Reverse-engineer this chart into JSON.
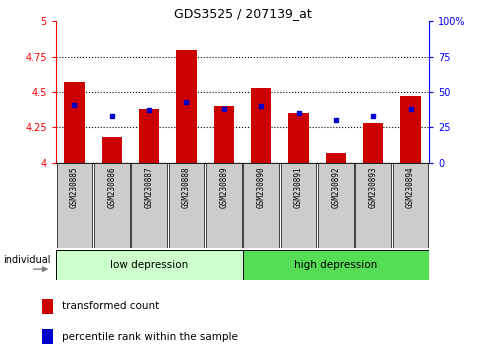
{
  "title": "GDS3525 / 207139_at",
  "categories": [
    "GSM230885",
    "GSM230886",
    "GSM230887",
    "GSM230888",
    "GSM230889",
    "GSM230890",
    "GSM230891",
    "GSM230892",
    "GSM230893",
    "GSM230894"
  ],
  "red_values": [
    4.57,
    4.18,
    4.38,
    4.8,
    4.4,
    4.53,
    4.35,
    4.07,
    4.28,
    4.47
  ],
  "blue_values": [
    4.41,
    4.33,
    4.37,
    4.43,
    4.38,
    4.4,
    4.35,
    4.3,
    4.33,
    4.38
  ],
  "ymin": 4.0,
  "ymax": 5.0,
  "yticks": [
    4.0,
    4.25,
    4.5,
    4.75,
    5.0
  ],
  "ytick_labels": [
    "4",
    "4.25",
    "4.5",
    "4.75",
    "5"
  ],
  "right_ytick_labels": [
    "0",
    "25",
    "50",
    "75",
    "100%"
  ],
  "group1_label": "low depression",
  "group2_label": "high depression",
  "group1_color": "#ccffcc",
  "group2_color": "#55dd55",
  "bar_color": "#cc0000",
  "dot_color": "#0000cc",
  "bar_bottom": 4.0,
  "bar_width": 0.55,
  "legend_red": "transformed count",
  "legend_blue": "percentile rank within the sample",
  "individual_label": "individual",
  "tick_area_color": "#cccccc"
}
